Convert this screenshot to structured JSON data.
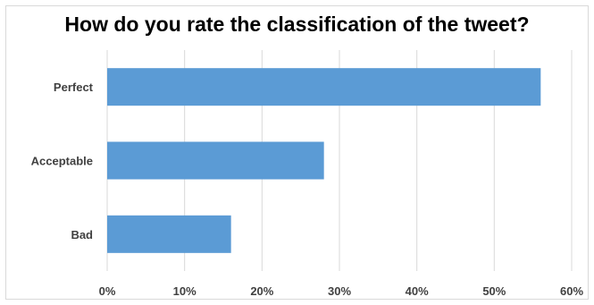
{
  "chart_data": {
    "type": "bar",
    "orientation": "horizontal",
    "title": "How do you rate the classification of the tweet?",
    "categories": [
      "Perfect",
      "Acceptable",
      "Bad"
    ],
    "values": [
      56,
      28,
      16
    ],
    "value_unit": "%",
    "xlim": [
      0,
      60
    ],
    "x_ticks": [
      "0%",
      "10%",
      "20%",
      "30%",
      "40%",
      "50%",
      "60%"
    ],
    "grid": true,
    "legend": "none",
    "colors": {
      "bar": "#5b9bd5",
      "grid": "#d9d9d9",
      "text": "#404040"
    }
  }
}
